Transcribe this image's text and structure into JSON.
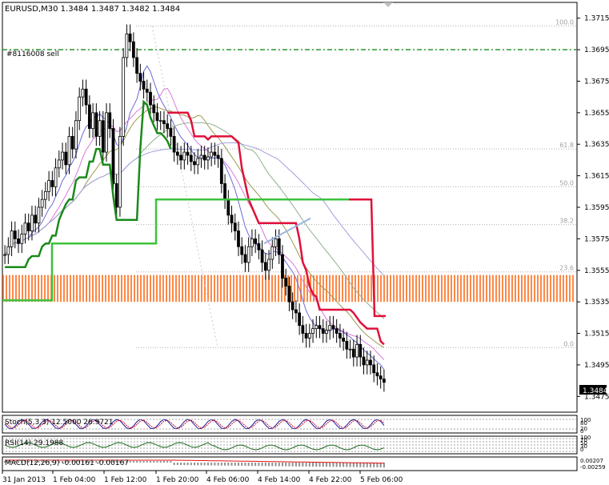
{
  "symbol_header": "EURUSD,M30  1.3484 1.3487 1.3482 1.3484",
  "order_label": "#8116008 sell",
  "current_price": "1.3484",
  "chart_data": {
    "type": "candlestick",
    "symbol": "EURUSD",
    "timeframe": "M30",
    "ohlc_last": {
      "open": 1.3484,
      "high": 1.3487,
      "low": 1.3482,
      "close": 1.3484
    },
    "ylim": [
      1.3465,
      1.3725
    ],
    "price_ticks": [
      "1.3715",
      "1.3695",
      "1.3675",
      "1.3655",
      "1.3635",
      "1.3615",
      "1.3595",
      "1.3575",
      "1.3555",
      "1.3535",
      "1.3515",
      "1.3495",
      "1.3475"
    ],
    "time_labels": [
      "31 Jan 2013",
      "1 Feb 04:00",
      "1 Feb 12:00",
      "1 Feb 20:00",
      "4 Feb 06:00",
      "4 Feb 14:00",
      "4 Feb 22:00",
      "5 Feb 06:00"
    ],
    "fib_levels": [
      {
        "label": "100.0",
        "price": 1.371
      },
      {
        "label": "61.8",
        "price": 1.3632
      },
      {
        "label": "50.0",
        "price": 1.3608
      },
      {
        "label": "38.2",
        "price": 1.3584
      },
      {
        "label": "23.6",
        "price": 1.3554
      },
      {
        "label": "0.0",
        "price": 1.3506
      }
    ],
    "order_line_price": 1.3695,
    "zone": [
      1.3535,
      1.3552
    ],
    "close_series": [
      1.3565,
      1.357,
      1.358,
      1.3575,
      1.3572,
      1.3578,
      1.3585,
      1.358,
      1.359,
      1.3585,
      1.3595,
      1.36,
      1.3605,
      1.3612,
      1.3608,
      1.362,
      1.3625,
      1.363,
      1.3622,
      1.364,
      1.3632,
      1.365,
      1.3665,
      1.367,
      1.366,
      1.3645,
      1.3655,
      1.364,
      1.365,
      1.363,
      1.3655,
      1.3645,
      1.361,
      1.3595,
      1.364,
      1.369,
      1.3705,
      1.37,
      1.369,
      1.368,
      1.3675,
      1.367,
      1.3668,
      1.366,
      1.3655,
      1.365,
      1.365,
      1.3648,
      1.3645,
      1.364,
      1.363,
      1.3628,
      1.3625,
      1.363,
      1.3628,
      1.3624,
      1.3622,
      1.3626,
      1.3628,
      1.3625,
      1.3627,
      1.363,
      1.3628,
      1.3626,
      1.361,
      1.36,
      1.359,
      1.3585,
      1.358,
      1.357,
      1.3565,
      1.356,
      1.357,
      1.3575,
      1.3572,
      1.3568,
      1.356,
      1.3555,
      1.3562,
      1.357,
      1.3575,
      1.3565,
      1.355,
      1.3545,
      1.3535,
      1.353,
      1.3528,
      1.352,
      1.3515,
      1.3512,
      1.3515,
      1.3518,
      1.352,
      1.3518,
      1.3515,
      1.3517,
      1.352,
      1.3518,
      1.3515,
      1.3512,
      1.351,
      1.3505,
      1.3505,
      1.35,
      1.3508,
      1.35,
      1.3495,
      1.3498,
      1.3495,
      1.349,
      1.3488,
      1.3486,
      1.3484
    ],
    "indicators": [
      {
        "name": "Stoch(5,3,3)",
        "values": "12.5000 26.9721",
        "levels": [
          "100",
          "80",
          "20",
          "0"
        ]
      },
      {
        "name": "RSI(14)",
        "values": "29.1988",
        "levels": [
          "100",
          "70",
          "50",
          "30",
          "0"
        ]
      },
      {
        "name": "MACD(12,26,9)",
        "values": "-0.00161 -0.00167",
        "levels": [
          "0.00207",
          "-0.00259"
        ]
      }
    ]
  }
}
